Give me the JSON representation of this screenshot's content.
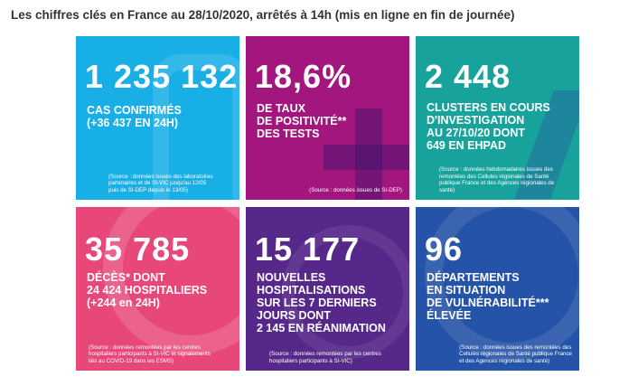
{
  "header": {
    "title": "Les chiffres clés en France au 28/10/2020, arrêtés à 14h (mis en ligne en fin de journée)"
  },
  "tiles": [
    {
      "figure": "1 235 132",
      "lines": [
        "CAS CONFIRMÉS",
        "(+36 437 EN 24H)"
      ],
      "source": [
        "(Source : données issues des laboratoires",
        "partenaires et de SI-VIC jusqu'au 12/05",
        "puis de SI-DEP depuis le 13/05)"
      ]
    },
    {
      "figure": "18,6%",
      "lines": [
        "DE TAUX",
        "DE POSITIVITÉ**",
        "DES TESTS"
      ],
      "source": [
        "(Source : données issues de SI-DEP)"
      ]
    },
    {
      "figure": "2 448",
      "lines": [
        "CLUSTERS EN COURS",
        "D'INVESTIGATION",
        "AU 27/10/20 DONT",
        "649 EN EHPAD"
      ],
      "source": [
        "(Source : données hebdomadaires issues des",
        "remontées des Cellules régionales de Santé",
        "publique France et des Agences régionales de",
        "santé)"
      ]
    },
    {
      "figure": "35 785",
      "lines": [
        "DÉCÈS* DONT",
        "24 424 HOSPITALIERS",
        "(+244 en 24H)"
      ],
      "source": [
        "(Source : données remontées par les centres",
        "hospitaliers participants à SI-VIC et signalements",
        "liés au COVID-19 dans les ESMS)"
      ]
    },
    {
      "figure": "15 177",
      "lines": [
        "NOUVELLES",
        "HOSPITALISATIONS",
        "SUR LES 7 DERNIERS",
        "JOURS DONT",
        "2 145 EN RÉANIMATION"
      ],
      "source": [
        "(Source : données remontées par les centres",
        "hospitaliers participants à SI-VIC)"
      ]
    },
    {
      "figure": "96",
      "lines": [
        "DÉPARTEMENTS",
        "EN SITUATION",
        "DE VULNÉRABILITÉ***",
        "ÉLEVÉE"
      ],
      "source": [
        "(Source : données issues des remontées des",
        "Cellules régionales de Santé publique France",
        "et des Agences régionales de santé)"
      ]
    }
  ]
}
